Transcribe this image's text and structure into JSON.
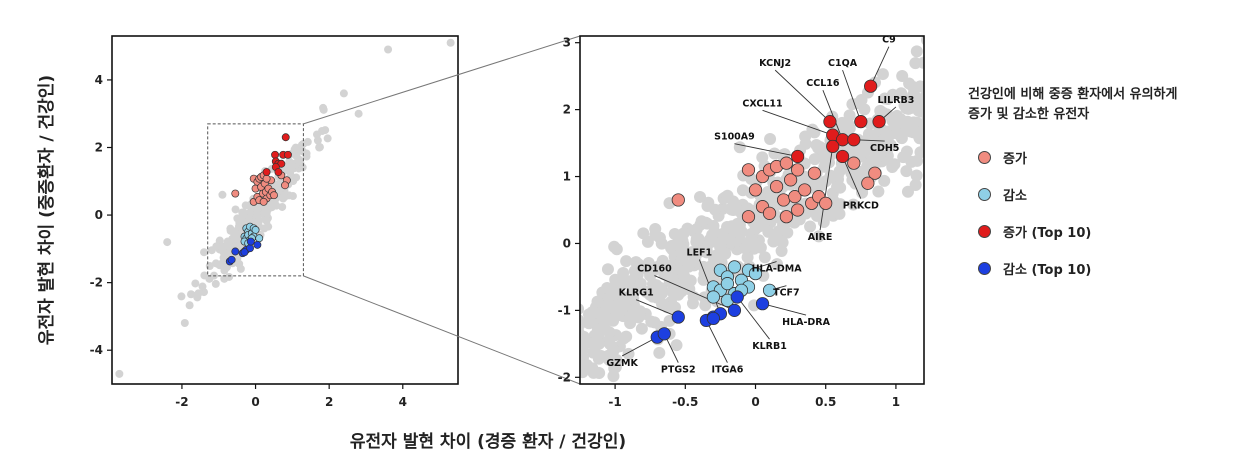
{
  "colors": {
    "background_points": "#d3d3d3",
    "up": "#f08c80",
    "down": "#8fd0e6",
    "up_top10": "#e01c1c",
    "down_top10": "#1d3fe0"
  },
  "shared_xlabel": "유전자 발현 차이 (경증 환자 / 건강인)",
  "legend": {
    "title_line1": "건강인에 비해 중증 환자에서 유의하게",
    "title_line2": "증가 및 감소한 유전자",
    "items": [
      {
        "label": "증가",
        "color": "#f08c80"
      },
      {
        "label": "감소",
        "color": "#8fd0e6"
      },
      {
        "label": "증가 (Top 10)",
        "color": "#e01c1c"
      },
      {
        "label": "감소 (Top 10)",
        "color": "#1d3fe0"
      }
    ]
  },
  "chart_data": [
    {
      "type": "scatter",
      "title": "",
      "xlabel": "유전자 발현 차이 (경증 환자 / 건강인)",
      "ylabel": "유전자 발현 차이 (중증환자 / 건강인)",
      "xlim": [
        -3.9,
        5.5
      ],
      "ylim": [
        -5,
        5.3
      ],
      "xticks": [
        "-2",
        "0",
        "2",
        "4"
      ],
      "xtick_values": [
        -2,
        0,
        2,
        4
      ],
      "yticks": [
        "4",
        "2",
        "0",
        "-2",
        "-4"
      ],
      "ytick_values": [
        4,
        2,
        0,
        -2,
        -4
      ],
      "zoom_box": {
        "x": [
          -1.3,
          1.3
        ],
        "y": [
          -1.8,
          2.7
        ]
      },
      "outliers": [
        [
          -2.4,
          -0.8
        ],
        [
          3.6,
          4.9
        ],
        [
          5.3,
          5.1
        ],
        [
          -3.7,
          -4.7
        ],
        [
          2.4,
          3.6
        ],
        [
          -1.4,
          -1.1
        ],
        [
          2.8,
          3.0
        ],
        [
          -0.9,
          0.6
        ]
      ]
    },
    {
      "type": "scatter",
      "title": "",
      "xlabel": "",
      "ylabel": "",
      "xlim": [
        -1.25,
        1.2
      ],
      "ylim": [
        -2.1,
        3.1
      ],
      "xticks": [
        "-1",
        "-0.5",
        "0",
        "0.5",
        "1"
      ],
      "xtick_values": [
        -1,
        -0.5,
        0,
        0.5,
        1
      ],
      "yticks": [
        "3",
        "2",
        "1",
        "0",
        "-1",
        "-2"
      ],
      "ytick_values": [
        3,
        2,
        1,
        0,
        -1,
        -2
      ],
      "series": [
        {
          "name": "증가",
          "color": "#f08c80",
          "points": [
            [
              -0.55,
              0.65
            ],
            [
              -0.05,
              0.4
            ],
            [
              -0.05,
              1.1
            ],
            [
              0.05,
              1.0
            ],
            [
              0.1,
              1.1
            ],
            [
              0.15,
              1.15
            ],
            [
              0.0,
              0.8
            ],
            [
              0.05,
              0.55
            ],
            [
              0.1,
              0.45
            ],
            [
              0.15,
              0.85
            ],
            [
              0.2,
              0.65
            ],
            [
              0.22,
              1.2
            ],
            [
              0.25,
              0.95
            ],
            [
              0.28,
              0.7
            ],
            [
              0.3,
              0.5
            ],
            [
              0.35,
              0.8
            ],
            [
              0.4,
              0.6
            ],
            [
              0.42,
              1.05
            ],
            [
              0.45,
              0.7
            ],
            [
              0.5,
              0.6
            ],
            [
              0.22,
              0.4
            ],
            [
              0.3,
              1.1
            ],
            [
              0.7,
              1.2
            ],
            [
              0.85,
              1.05
            ],
            [
              0.8,
              0.9
            ]
          ]
        },
        {
          "name": "감소",
          "color": "#8fd0e6",
          "points": [
            [
              -0.25,
              -0.4
            ],
            [
              -0.2,
              -0.5
            ],
            [
              -0.15,
              -0.35
            ],
            [
              -0.3,
              -0.65
            ],
            [
              -0.25,
              -0.7
            ],
            [
              -0.2,
              -0.6
            ],
            [
              -0.15,
              -0.75
            ],
            [
              -0.1,
              -0.55
            ],
            [
              -0.05,
              -0.4
            ],
            [
              0.0,
              -0.45
            ],
            [
              -0.05,
              -0.65
            ],
            [
              -0.1,
              -0.7
            ],
            [
              0.1,
              -0.7
            ],
            [
              -0.3,
              -0.8
            ],
            [
              -0.2,
              -0.85
            ]
          ]
        },
        {
          "name": "증가 (Top 10)",
          "color": "#e01c1c",
          "points": [
            [
              0.82,
              2.35
            ],
            [
              0.53,
              1.82
            ],
            [
              0.75,
              1.82
            ],
            [
              0.88,
              1.82
            ],
            [
              0.55,
              1.62
            ],
            [
              0.62,
              1.55
            ],
            [
              0.7,
              1.55
            ],
            [
              0.3,
              1.3
            ],
            [
              0.55,
              1.45
            ],
            [
              0.62,
              1.3
            ]
          ]
        },
        {
          "name": "감소 (Top 10)",
          "color": "#1d3fe0",
          "points": [
            [
              -0.7,
              -1.4
            ],
            [
              -0.65,
              -1.35
            ],
            [
              -0.55,
              -1.1
            ],
            [
              -0.35,
              -1.15
            ],
            [
              -0.3,
              -1.1
            ],
            [
              -0.25,
              -1.05
            ],
            [
              -0.15,
              -1.0
            ],
            [
              -0.13,
              -0.8
            ],
            [
              0.05,
              -0.9
            ],
            [
              -0.3,
              -1.12
            ]
          ]
        }
      ],
      "gene_labels": [
        {
          "text": "C9",
          "x": 0.95,
          "y": 3.0,
          "px": 0.82,
          "py": 2.35
        },
        {
          "text": "KCNJ2",
          "x": 0.14,
          "y": 2.65,
          "px": 0.53,
          "py": 1.82
        },
        {
          "text": "C1QA",
          "x": 0.62,
          "y": 2.65,
          "px": 0.75,
          "py": 1.82
        },
        {
          "text": "CCL16",
          "x": 0.48,
          "y": 2.35,
          "px": 0.62,
          "py": 1.55
        },
        {
          "text": "LILRB3",
          "x": 1.0,
          "y": 2.1,
          "px": 0.88,
          "py": 1.82
        },
        {
          "text": "CXCL11",
          "x": 0.05,
          "y": 2.05,
          "px": 0.55,
          "py": 1.62
        },
        {
          "text": "CDH5",
          "x": 0.92,
          "y": 1.38,
          "px": 0.7,
          "py": 1.55
        },
        {
          "text": "S100A9",
          "x": -0.15,
          "y": 1.55,
          "px": 0.3,
          "py": 1.3
        },
        {
          "text": "PRKCD",
          "x": 0.75,
          "y": 0.52,
          "px": 0.62,
          "py": 1.3
        },
        {
          "text": "AIRE",
          "x": 0.46,
          "y": 0.05,
          "px": 0.55,
          "py": 1.45
        },
        {
          "text": "HLA-DMA",
          "x": 0.15,
          "y": -0.42,
          "px": -0.05,
          "py": -0.4
        },
        {
          "text": "LEF1",
          "x": -0.4,
          "y": -0.18,
          "px": -0.25,
          "py": -1.05
        },
        {
          "text": "CD160",
          "x": -0.72,
          "y": -0.42,
          "px": -0.15,
          "py": -1.0
        },
        {
          "text": "TCF7",
          "x": 0.22,
          "y": -0.78,
          "px": 0.1,
          "py": -0.7
        },
        {
          "text": "KLRG1",
          "x": -0.85,
          "y": -0.78,
          "px": -0.55,
          "py": -1.1
        },
        {
          "text": "HLA-DRA",
          "x": 0.36,
          "y": -1.22,
          "px": 0.05,
          "py": -0.9
        },
        {
          "text": "KLRB1",
          "x": 0.1,
          "y": -1.58,
          "px": -0.13,
          "py": -0.8
        },
        {
          "text": "GZMK",
          "x": -0.95,
          "y": -1.83,
          "px": -0.7,
          "py": -1.4
        },
        {
          "text": "PTGS2",
          "x": -0.55,
          "y": -1.93,
          "px": -0.65,
          "py": -1.35
        },
        {
          "text": "ITGA6",
          "x": -0.2,
          "y": -1.93,
          "px": -0.35,
          "py": -1.15
        }
      ]
    }
  ]
}
